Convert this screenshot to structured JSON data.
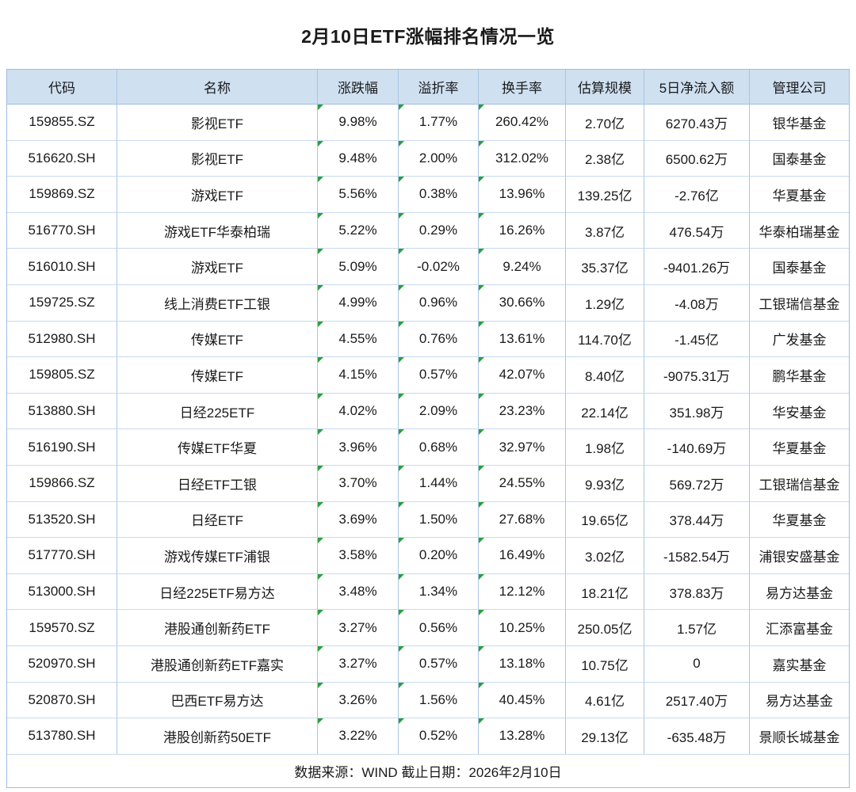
{
  "title": "2月10日ETF涨幅排名情况一览",
  "footer": {
    "text": "数据来源：WIND 截止日期：2026年2月10日"
  },
  "colors": {
    "header_bg": "#cfe0f1",
    "border_vertical": "#aac6e6",
    "border_horizontal": "#c9daf0",
    "outer_border": "#9fbede",
    "corner_marker_green": "#28a03c",
    "text": "#1a1a1a"
  },
  "chart_data": {
    "type": "table",
    "title": "2月10日ETF涨幅排名情况一览",
    "source_note": "数据来源：WIND 截止日期：2026年2月10日",
    "columns": [
      "代码",
      "名称",
      "涨跌幅",
      "溢折率",
      "换手率",
      "估算规模",
      "5日净流入额",
      "管理公司"
    ],
    "marker_columns": [
      2,
      3,
      4
    ],
    "rows": [
      [
        "159855.SZ",
        "影视ETF",
        "9.98%",
        "1.77%",
        "260.42%",
        "2.70亿",
        "6270.43万",
        "银华基金"
      ],
      [
        "516620.SH",
        "影视ETF",
        "9.48%",
        "2.00%",
        "312.02%",
        "2.38亿",
        "6500.62万",
        "国泰基金"
      ],
      [
        "159869.SZ",
        "游戏ETF",
        "5.56%",
        "0.38%",
        "13.96%",
        "139.25亿",
        "-2.76亿",
        "华夏基金"
      ],
      [
        "516770.SH",
        "游戏ETF华泰柏瑞",
        "5.22%",
        "0.29%",
        "16.26%",
        "3.87亿",
        "476.54万",
        "华泰柏瑞基金"
      ],
      [
        "516010.SH",
        "游戏ETF",
        "5.09%",
        "-0.02%",
        "9.24%",
        "35.37亿",
        "-9401.26万",
        "国泰基金"
      ],
      [
        "159725.SZ",
        "线上消费ETF工银",
        "4.99%",
        "0.96%",
        "30.66%",
        "1.29亿",
        "-4.08万",
        "工银瑞信基金"
      ],
      [
        "512980.SH",
        "传媒ETF",
        "4.55%",
        "0.76%",
        "13.61%",
        "114.70亿",
        "-1.45亿",
        "广发基金"
      ],
      [
        "159805.SZ",
        "传媒ETF",
        "4.15%",
        "0.57%",
        "42.07%",
        "8.40亿",
        "-9075.31万",
        "鹏华基金"
      ],
      [
        "513880.SH",
        "日经225ETF",
        "4.02%",
        "2.09%",
        "23.23%",
        "22.14亿",
        "351.98万",
        "华安基金"
      ],
      [
        "516190.SH",
        "传媒ETF华夏",
        "3.96%",
        "0.68%",
        "32.97%",
        "1.98亿",
        "-140.69万",
        "华夏基金"
      ],
      [
        "159866.SZ",
        "日经ETF工银",
        "3.70%",
        "1.44%",
        "24.55%",
        "9.93亿",
        "569.72万",
        "工银瑞信基金"
      ],
      [
        "513520.SH",
        "日经ETF",
        "3.69%",
        "1.50%",
        "27.68%",
        "19.65亿",
        "378.44万",
        "华夏基金"
      ],
      [
        "517770.SH",
        "游戏传媒ETF浦银",
        "3.58%",
        "0.20%",
        "16.49%",
        "3.02亿",
        "-1582.54万",
        "浦银安盛基金"
      ],
      [
        "513000.SH",
        "日经225ETF易方达",
        "3.48%",
        "1.34%",
        "12.12%",
        "18.21亿",
        "378.83万",
        "易方达基金"
      ],
      [
        "159570.SZ",
        "港股通创新药ETF",
        "3.27%",
        "0.56%",
        "10.25%",
        "250.05亿",
        "1.57亿",
        "汇添富基金"
      ],
      [
        "520970.SH",
        "港股通创新药ETF嘉实",
        "3.27%",
        "0.57%",
        "13.18%",
        "10.75亿",
        "0",
        "嘉实基金"
      ],
      [
        "520870.SH",
        "巴西ETF易方达",
        "3.26%",
        "1.56%",
        "40.45%",
        "4.61亿",
        "2517.40万",
        "易方达基金"
      ],
      [
        "513780.SH",
        "港股创新药50ETF",
        "3.22%",
        "0.52%",
        "13.28%",
        "29.13亿",
        "-635.48万",
        "景顺长城基金"
      ]
    ]
  }
}
